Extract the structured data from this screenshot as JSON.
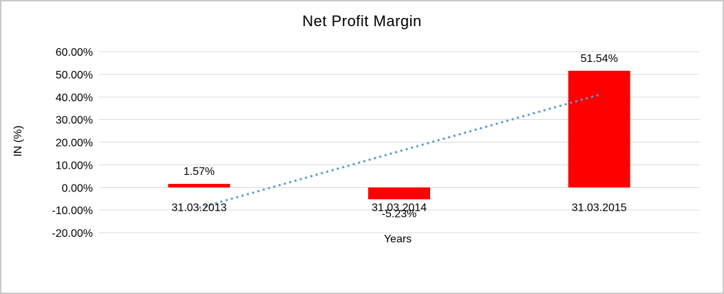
{
  "frame": {
    "background": "#ffffff",
    "border_color": "#c8c8c8"
  },
  "chart_data": {
    "type": "bar",
    "title": "Net Profit Margin",
    "xlabel": "Years",
    "ylabel": "IN (%)",
    "categories": [
      "31.03.2013",
      "31.03.2014",
      "31.03.2015"
    ],
    "values": [
      1.57,
      -5.23,
      51.54
    ],
    "data_labels": [
      "1.57%",
      "-5.23%",
      "51.54%"
    ],
    "ytick_labels": [
      "60.00%",
      "50.00%",
      "40.00%",
      "30.00%",
      "20.00%",
      "10.00%",
      "0.00%",
      "-10.00%",
      "-20.00%"
    ],
    "ylim": [
      -20,
      60
    ],
    "ytick_step": 10,
    "grid": true,
    "legend": "none",
    "bar_color": "#ff0000",
    "gridline_color": "#d9d9d9",
    "text_color": "#000000",
    "trendline": {
      "type": "linear",
      "style": "dotted",
      "color": "#5b9bd5",
      "start_value": -9.03,
      "end_value": 40.94
    }
  }
}
